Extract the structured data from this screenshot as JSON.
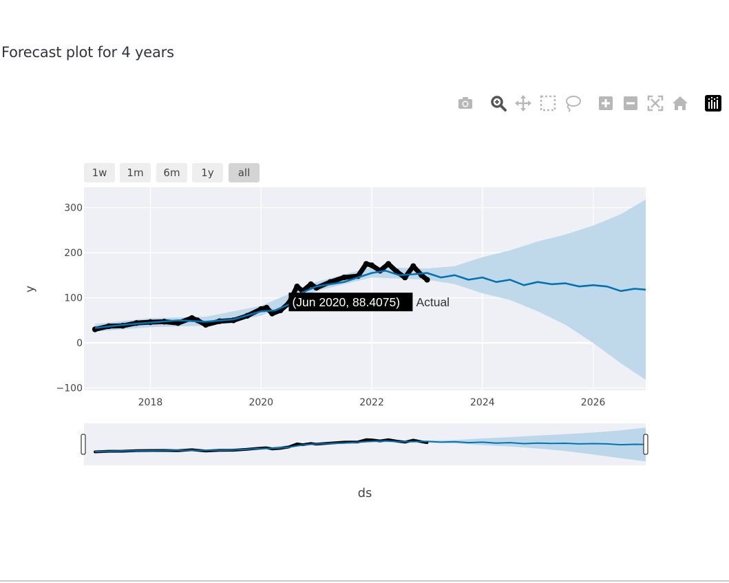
{
  "page": {
    "title": "Forecast plot for 4 years"
  },
  "modebar": {
    "buttons": [
      "camera-icon",
      "zoom-icon",
      "pan-icon",
      "box-select-icon",
      "lasso-icon",
      "zoom-in-icon",
      "zoom-out-icon",
      "autoscale-icon",
      "reset-axes-icon",
      "plotly-logo-icon"
    ]
  },
  "range_selector": {
    "buttons": [
      {
        "label": "1w",
        "active": false
      },
      {
        "label": "1m",
        "active": false
      },
      {
        "label": "6m",
        "active": false
      },
      {
        "label": "1y",
        "active": false
      },
      {
        "label": "all",
        "active": true
      }
    ]
  },
  "tooltip": {
    "text": "(Jun 2020, 88.4075)",
    "series": "Actual",
    "x": 2020.45,
    "y": 88.4075
  },
  "colors": {
    "forecast_line": "#0072b2",
    "uncertainty_band": "#bcd7e9",
    "actual_points": "#000000",
    "plot_bg": "#eff0f5",
    "grid": "#ffffff"
  },
  "chart_data": {
    "type": "line",
    "xlabel": "ds",
    "ylabel": "y",
    "xlim": [
      2016.8,
      2026.95
    ],
    "ylim": [
      -105,
      345
    ],
    "xticks": [
      2018,
      2020,
      2022,
      2024,
      2026
    ],
    "xtick_labels": [
      "2018",
      "2020",
      "2022",
      "2024",
      "2026"
    ],
    "yticks": [
      -100,
      0,
      100,
      200,
      300
    ],
    "ytick_labels": [
      "−100",
      "0",
      "100",
      "200",
      "300"
    ],
    "grid": true,
    "rangeslider": true,
    "series": [
      {
        "name": "Actual",
        "kind": "markers",
        "x": [
          2017.0,
          2017.25,
          2017.5,
          2017.75,
          2018.0,
          2018.25,
          2018.5,
          2018.75,
          2018.85,
          2019.0,
          2019.25,
          2019.5,
          2019.75,
          2020.0,
          2020.1,
          2020.2,
          2020.35,
          2020.5,
          2020.65,
          2020.75,
          2020.9,
          2021.0,
          2021.25,
          2021.5,
          2021.75,
          2021.9,
          2022.0,
          2022.15,
          2022.3,
          2022.45,
          2022.6,
          2022.75,
          2022.9,
          2023.0
        ],
        "y": [
          30,
          37,
          38,
          44,
          46,
          47,
          44,
          55,
          50,
          40,
          48,
          50,
          60,
          75,
          78,
          65,
          72,
          88,
          125,
          115,
          130,
          122,
          135,
          145,
          148,
          175,
          172,
          160,
          175,
          158,
          145,
          170,
          150,
          140
        ]
      },
      {
        "name": "Predicted",
        "kind": "line",
        "x": [
          2017.0,
          2017.5,
          2018.0,
          2018.5,
          2019.0,
          2019.5,
          2020.0,
          2020.25,
          2020.5,
          2020.75,
          2021.0,
          2021.5,
          2022.0,
          2022.25,
          2022.5,
          2022.75,
          2023.0,
          2023.25,
          2023.5,
          2023.75,
          2024.0,
          2024.25,
          2024.5,
          2024.75,
          2025.0,
          2025.25,
          2025.5,
          2025.75,
          2026.0,
          2026.25,
          2026.5,
          2026.75,
          2026.95
        ],
        "y": [
          33,
          40,
          45,
          50,
          47,
          52,
          70,
          72,
          85,
          112,
          125,
          135,
          155,
          160,
          150,
          152,
          155,
          145,
          150,
          140,
          145,
          135,
          140,
          128,
          135,
          130,
          132,
          125,
          128,
          125,
          115,
          120,
          118
        ]
      },
      {
        "name": "Uncertainty upper",
        "kind": "band_upper",
        "x": [
          2017.0,
          2018.0,
          2019.0,
          2020.0,
          2021.0,
          2022.0,
          2023.0,
          2023.5,
          2024.0,
          2024.5,
          2025.0,
          2025.5,
          2026.0,
          2026.5,
          2026.95
        ],
        "y": [
          42,
          55,
          58,
          82,
          135,
          168,
          165,
          170,
          190,
          205,
          225,
          240,
          260,
          285,
          318
        ]
      },
      {
        "name": "Uncertainty lower",
        "kind": "band_lower",
        "x": [
          2017.0,
          2018.0,
          2019.0,
          2020.0,
          2021.0,
          2022.0,
          2023.0,
          2023.5,
          2024.0,
          2024.5,
          2025.0,
          2025.5,
          2026.0,
          2026.5,
          2026.95
        ],
        "y": [
          25,
          35,
          38,
          60,
          115,
          145,
          140,
          130,
          110,
          95,
          70,
          40,
          0,
          -45,
          -82
        ]
      }
    ]
  }
}
